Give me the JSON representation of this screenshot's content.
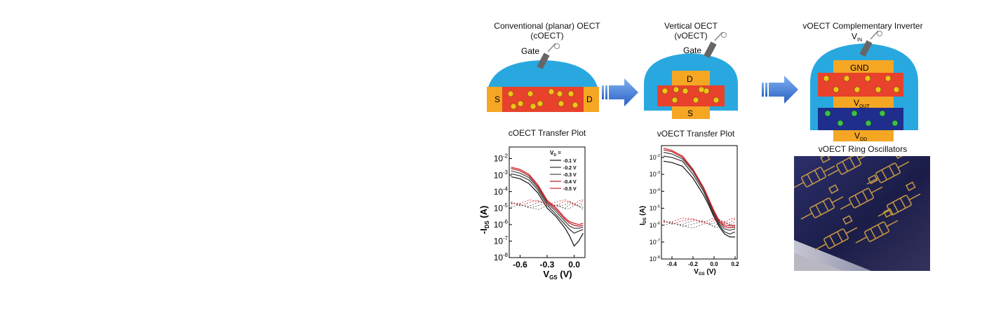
{
  "panels": {
    "coect": {
      "title_line1": "Conventional (planar) OECT",
      "title_line2": "(cOECT)",
      "gate": "Gate",
      "source": "S",
      "drain": "D"
    },
    "voect": {
      "title_line1": "Vertical OECT",
      "title_line2": "(vOECT)",
      "gate": "Gate",
      "drain": "D",
      "source": "S"
    },
    "inverter": {
      "title": "vOECT Complementary Inverter",
      "v_in": "V",
      "v_in_sub": "IN",
      "gnd": "GND",
      "v_out": "V",
      "v_out_sub": "OUT",
      "v_dd": "V",
      "v_dd_sub": "DD"
    },
    "ring": {
      "title": "vOECT Ring Oscillators"
    }
  },
  "colors": {
    "electrolyte": "#29a8e0",
    "electrode": "#f5a623",
    "p_channel": "#e8412c",
    "n_channel": "#1f2d8c",
    "arrow": "#2f6fd6",
    "curve_red": "#d0202a"
  },
  "charts": {
    "coect": {
      "title": "cOECT Transfer Plot",
      "ylabel_main": "-I",
      "ylabel_sub": "DS",
      "ylabel_unit": " (A)",
      "xlabel_main": "V",
      "xlabel_sub": "GS",
      "xlabel_unit": " (V)",
      "y_ticks": [
        {
          "b": "10",
          "e": "-2"
        },
        {
          "b": "10",
          "e": "-3"
        },
        {
          "b": "10",
          "e": "-4"
        },
        {
          "b": "10",
          "e": "-5"
        },
        {
          "b": "10",
          "e": "-6"
        },
        {
          "b": "10",
          "e": "-7"
        },
        {
          "b": "10",
          "e": "-8"
        }
      ],
      "x_ticks": [
        "-0.6",
        "-0.3",
        "0.0"
      ],
      "legend_title_main": "V",
      "legend_title_sub": "D",
      "legend_title_tail": " =",
      "legend": [
        "-0.1 V",
        "-0.2 V",
        "-0.3 V",
        "-0.4 V",
        "-0.5 V"
      ]
    },
    "voect": {
      "title": "vOECT Transfer Plot",
      "ylabel_main": "I",
      "ylabel_sub": "DS",
      "ylabel_unit": " (A)",
      "xlabel_main": "V",
      "xlabel_sub": "GS",
      "xlabel_unit": " (V)",
      "y_ticks": [
        {
          "b": "10",
          "e": "-2"
        },
        {
          "b": "10",
          "e": "-3"
        },
        {
          "b": "10",
          "e": "-4"
        },
        {
          "b": "10",
          "e": "-5"
        },
        {
          "b": "10",
          "e": "-6"
        },
        {
          "b": "10",
          "e": "-7"
        },
        {
          "b": "10",
          "e": "-8"
        }
      ],
      "x_ticks": [
        "-0.4",
        "-0.2",
        "0.0",
        "0.2"
      ]
    }
  },
  "chart_data": [
    {
      "type": "line",
      "title": "cOECT Transfer Plot",
      "xlabel": "VGS (V)",
      "ylabel": "-IDS (A)",
      "xlim": [
        -0.72,
        0.12
      ],
      "ylim": [
        1e-08,
        0.05
      ],
      "yscale": "log",
      "legend_title": "VD =",
      "legend_position": "top-right",
      "x": [
        -0.7,
        -0.6,
        -0.5,
        -0.4,
        -0.3,
        -0.2,
        -0.1,
        -0.05,
        0.0,
        0.05,
        0.1
      ],
      "series": [
        {
          "name": "-0.1 V",
          "values": [
            0.0008,
            0.0006,
            0.0003,
            8e-05,
            1e-05,
            3e-06,
            6e-07,
            2e-07,
            5e-08,
            1e-07,
            3e-07
          ]
        },
        {
          "name": "-0.2 V",
          "values": [
            0.0012,
            0.0009,
            0.0005,
            0.00012,
            1.5e-05,
            4e-06,
            1e-06,
            5e-07,
            3e-07,
            4e-07,
            5e-07
          ]
        },
        {
          "name": "-0.3 V",
          "values": [
            0.0018,
            0.0013,
            0.0007,
            0.00016,
            2e-05,
            6e-06,
            1.5e-06,
            8e-07,
            6e-07,
            6e-07,
            7e-07
          ]
        },
        {
          "name": "-0.4 V",
          "values": [
            0.0025,
            0.0018,
            0.0009,
            0.0002,
            2.5e-05,
            8e-06,
            2e-06,
            1.2e-06,
            9e-07,
            8e-07,
            9e-07
          ]
        },
        {
          "name": "-0.5 V",
          "values": [
            0.003,
            0.0022,
            0.0011,
            0.00025,
            3e-05,
            1e-05,
            2.5e-06,
            1.5e-06,
            1.2e-06,
            1e-06,
            1.2e-06
          ]
        }
      ]
    },
    {
      "type": "line",
      "title": "vOECT Transfer Plot",
      "xlabel": "VGS (V)",
      "ylabel": "IDS (A)",
      "xlim": [
        -0.5,
        0.22
      ],
      "ylim": [
        1e-08,
        0.05
      ],
      "yscale": "log",
      "x": [
        -0.48,
        -0.4,
        -0.3,
        -0.2,
        -0.1,
        -0.05,
        0.0,
        0.05,
        0.1,
        0.15,
        0.2
      ],
      "series": [
        {
          "values": [
            0.006,
            0.005,
            0.003,
            0.0006,
            6e-05,
            1.5e-05,
            3e-06,
            8e-07,
            3e-07,
            2e-07,
            2e-07
          ]
        },
        {
          "values": [
            0.012,
            0.01,
            0.006,
            0.001,
            0.0001,
            2e-05,
            4e-06,
            1e-06,
            4e-07,
            3e-07,
            4e-07
          ]
        },
        {
          "values": [
            0.02,
            0.016,
            0.008,
            0.0015,
            0.00013,
            2.5e-05,
            5e-06,
            1.2e-06,
            6e-07,
            5e-07,
            6e-07
          ]
        },
        {
          "values": [
            0.028,
            0.022,
            0.01,
            0.0018,
            0.00015,
            3e-05,
            6e-06,
            1.5e-06,
            8e-07,
            7e-07,
            8e-07
          ]
        },
        {
          "values": [
            0.035,
            0.026,
            0.012,
            0.002,
            0.00017,
            3.5e-05,
            7e-06,
            1.8e-06,
            1e-06,
            9e-07,
            1e-06
          ]
        }
      ]
    }
  ]
}
